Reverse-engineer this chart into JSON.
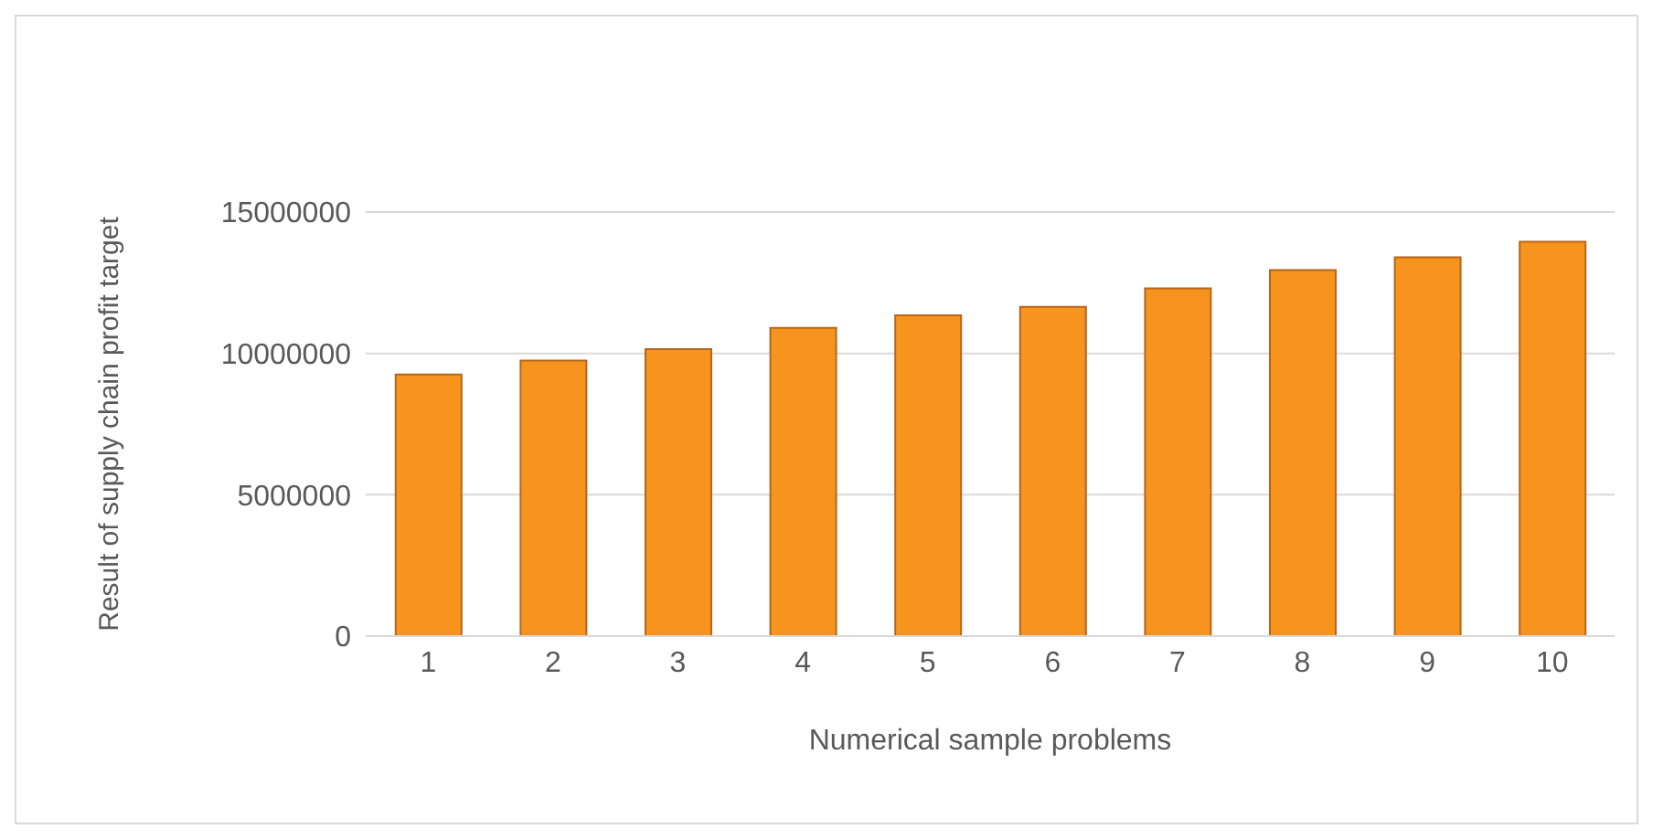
{
  "chart_data": {
    "type": "bar",
    "xlabel": "Numerical sample problems",
    "ylabel": "Result of supply chain profit target",
    "categories": [
      "1",
      "2",
      "3",
      "4",
      "5",
      "6",
      "7",
      "8",
      "9",
      "10"
    ],
    "values": [
      9250000,
      9750000,
      10150000,
      10900000,
      11350000,
      11650000,
      12300000,
      12950000,
      13400000,
      13950000
    ],
    "color": "#f7941d",
    "ylim": [
      0,
      15000000
    ],
    "yticks": [
      0,
      5000000,
      10000000,
      15000000
    ],
    "grid": "y",
    "legend": false
  }
}
